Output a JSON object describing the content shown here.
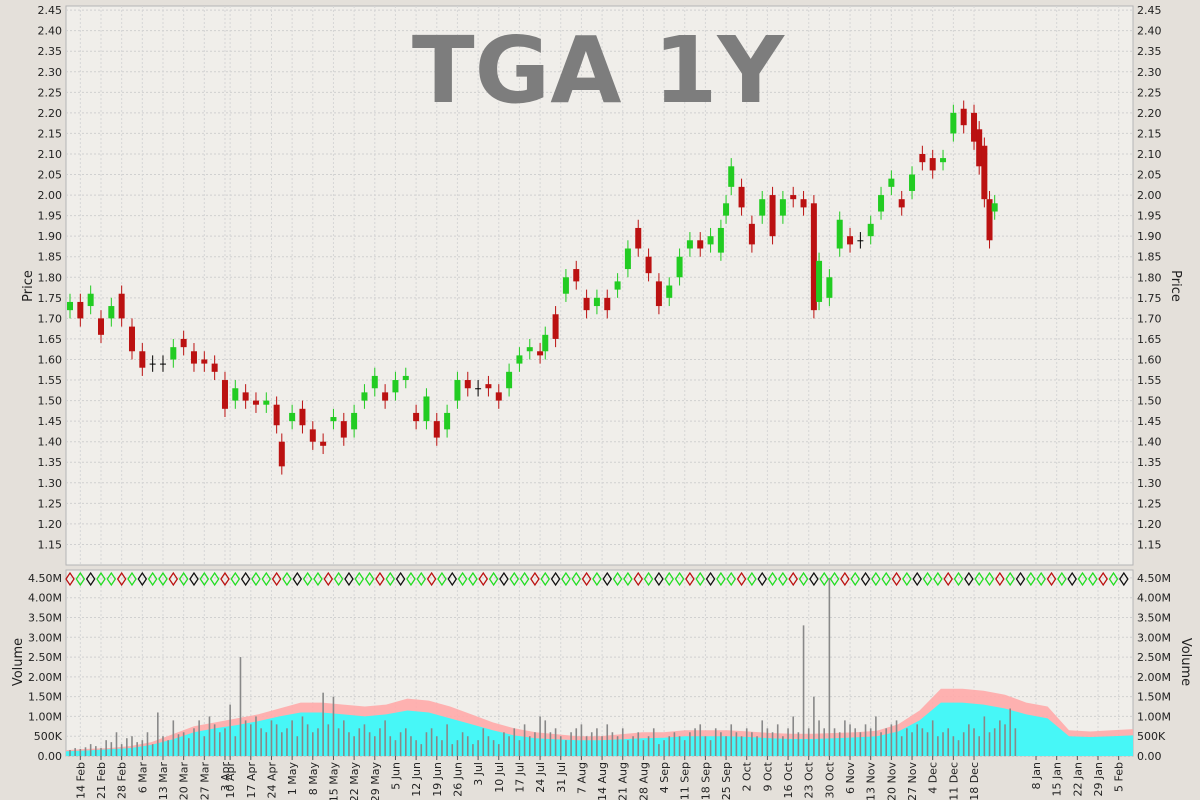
{
  "chart_data": {
    "type": "candlestick",
    "title": "TGA 1Y",
    "price_panel": {
      "ylabel": "Price",
      "ylim": [
        1.1,
        2.46
      ],
      "yticks": [
        "1.15",
        "1.20",
        "1.25",
        "1.30",
        "1.35",
        "1.40",
        "1.45",
        "1.50",
        "1.55",
        "1.60",
        "1.65",
        "1.70",
        "1.75",
        "1.80",
        "1.85",
        "1.90",
        "1.95",
        "2.00",
        "2.05",
        "2.10",
        "2.15",
        "2.20",
        "2.25",
        "2.30",
        "2.35",
        "2.40",
        "2.45"
      ],
      "grid": true,
      "series": [
        {
          "x": 0,
          "open": 1.72,
          "close": 1.74
        },
        {
          "x": 2,
          "open": 1.74,
          "close": 1.7
        },
        {
          "x": 4,
          "open": 1.73,
          "close": 1.76
        },
        {
          "x": 6,
          "open": 1.7,
          "close": 1.66
        },
        {
          "x": 8,
          "open": 1.7,
          "close": 1.73
        },
        {
          "x": 10,
          "open": 1.76,
          "close": 1.7
        },
        {
          "x": 12,
          "open": 1.68,
          "close": 1.62
        },
        {
          "x": 14,
          "open": 1.62,
          "close": 1.58
        },
        {
          "x": 16,
          "open": 1.59,
          "close": 1.59
        },
        {
          "x": 18,
          "open": 1.59,
          "close": 1.59
        },
        {
          "x": 20,
          "open": 1.6,
          "close": 1.63
        },
        {
          "x": 22,
          "open": 1.65,
          "close": 1.63
        },
        {
          "x": 24,
          "open": 1.62,
          "close": 1.59
        },
        {
          "x": 26,
          "open": 1.6,
          "close": 1.59
        },
        {
          "x": 28,
          "open": 1.59,
          "close": 1.57
        },
        {
          "x": 30,
          "open": 1.55,
          "close": 1.48
        },
        {
          "x": 32,
          "open": 1.5,
          "close": 1.53
        },
        {
          "x": 34,
          "open": 1.52,
          "close": 1.5
        },
        {
          "x": 36,
          "open": 1.5,
          "close": 1.49
        },
        {
          "x": 38,
          "open": 1.49,
          "close": 1.5
        },
        {
          "x": 40,
          "open": 1.49,
          "close": 1.44
        },
        {
          "x": 41,
          "open": 1.4,
          "close": 1.34
        },
        {
          "x": 43,
          "open": 1.45,
          "close": 1.47
        },
        {
          "x": 45,
          "open": 1.48,
          "close": 1.44
        },
        {
          "x": 47,
          "open": 1.43,
          "close": 1.4
        },
        {
          "x": 49,
          "open": 1.4,
          "close": 1.39
        },
        {
          "x": 51,
          "open": 1.45,
          "close": 1.46
        },
        {
          "x": 53,
          "open": 1.45,
          "close": 1.41
        },
        {
          "x": 55,
          "open": 1.43,
          "close": 1.47
        },
        {
          "x": 57,
          "open": 1.5,
          "close": 1.52
        },
        {
          "x": 59,
          "open": 1.53,
          "close": 1.56
        },
        {
          "x": 61,
          "open": 1.52,
          "close": 1.5
        },
        {
          "x": 63,
          "open": 1.52,
          "close": 1.55
        },
        {
          "x": 65,
          "open": 1.55,
          "close": 1.56
        },
        {
          "x": 67,
          "open": 1.47,
          "close": 1.45
        },
        {
          "x": 69,
          "open": 1.45,
          "close": 1.51
        },
        {
          "x": 71,
          "open": 1.45,
          "close": 1.41
        },
        {
          "x": 73,
          "open": 1.43,
          "close": 1.47
        },
        {
          "x": 75,
          "open": 1.5,
          "close": 1.55
        },
        {
          "x": 77,
          "open": 1.55,
          "close": 1.53
        },
        {
          "x": 79,
          "open": 1.53,
          "close": 1.53
        },
        {
          "x": 81,
          "open": 1.54,
          "close": 1.53
        },
        {
          "x": 83,
          "open": 1.52,
          "close": 1.5
        },
        {
          "x": 85,
          "open": 1.53,
          "close": 1.57
        },
        {
          "x": 87,
          "open": 1.59,
          "close": 1.61
        },
        {
          "x": 89,
          "open": 1.62,
          "close": 1.63
        },
        {
          "x": 91,
          "open": 1.62,
          "close": 1.61
        },
        {
          "x": 92,
          "open": 1.62,
          "close": 1.66
        },
        {
          "x": 94,
          "open": 1.71,
          "close": 1.65
        },
        {
          "x": 96,
          "open": 1.76,
          "close": 1.8
        },
        {
          "x": 98,
          "open": 1.82,
          "close": 1.79
        },
        {
          "x": 100,
          "open": 1.75,
          "close": 1.72
        },
        {
          "x": 102,
          "open": 1.73,
          "close": 1.75
        },
        {
          "x": 104,
          "open": 1.75,
          "close": 1.72
        },
        {
          "x": 106,
          "open": 1.77,
          "close": 1.79
        },
        {
          "x": 108,
          "open": 1.82,
          "close": 1.87
        },
        {
          "x": 110,
          "open": 1.92,
          "close": 1.87
        },
        {
          "x": 112,
          "open": 1.85,
          "close": 1.81
        },
        {
          "x": 114,
          "open": 1.79,
          "close": 1.73
        },
        {
          "x": 116,
          "open": 1.75,
          "close": 1.78
        },
        {
          "x": 118,
          "open": 1.8,
          "close": 1.85
        },
        {
          "x": 120,
          "open": 1.87,
          "close": 1.89
        },
        {
          "x": 122,
          "open": 1.89,
          "close": 1.87
        },
        {
          "x": 124,
          "open": 1.88,
          "close": 1.9
        },
        {
          "x": 126,
          "open": 1.86,
          "close": 1.92
        },
        {
          "x": 127,
          "open": 1.95,
          "close": 1.98
        },
        {
          "x": 128,
          "open": 2.02,
          "close": 2.07
        },
        {
          "x": 130,
          "open": 2.02,
          "close": 1.97
        },
        {
          "x": 132,
          "open": 1.93,
          "close": 1.88
        },
        {
          "x": 134,
          "open": 1.95,
          "close": 1.99
        },
        {
          "x": 136,
          "open": 2.0,
          "close": 1.9
        },
        {
          "x": 138,
          "open": 1.95,
          "close": 1.99
        },
        {
          "x": 140,
          "open": 2.0,
          "close": 1.99
        },
        {
          "x": 142,
          "open": 1.99,
          "close": 1.97
        },
        {
          "x": 144,
          "open": 1.98,
          "close": 1.72
        },
        {
          "x": 145,
          "open": 1.74,
          "close": 1.84
        },
        {
          "x": 147,
          "open": 1.75,
          "close": 1.8
        },
        {
          "x": 149,
          "open": 1.87,
          "close": 1.94
        },
        {
          "x": 151,
          "open": 1.9,
          "close": 1.88
        },
        {
          "x": 153,
          "open": 1.89,
          "close": 1.89
        },
        {
          "x": 155,
          "open": 1.9,
          "close": 1.93
        },
        {
          "x": 157,
          "open": 1.96,
          "close": 2.0
        },
        {
          "x": 159,
          "open": 2.02,
          "close": 2.04
        },
        {
          "x": 161,
          "open": 1.99,
          "close": 1.97
        },
        {
          "x": 163,
          "open": 2.01,
          "close": 2.05
        },
        {
          "x": 165,
          "open": 2.1,
          "close": 2.08
        },
        {
          "x": 167,
          "open": 2.09,
          "close": 2.06
        },
        {
          "x": 169,
          "open": 2.08,
          "close": 2.09
        },
        {
          "x": 171,
          "open": 2.15,
          "close": 2.2
        },
        {
          "x": 173,
          "open": 2.21,
          "close": 2.17
        },
        {
          "x": 175,
          "open": 2.2,
          "close": 2.13
        },
        {
          "x": 176,
          "open": 2.16,
          "close": 2.07
        },
        {
          "x": 177,
          "open": 2.12,
          "close": 1.99
        },
        {
          "x": 178,
          "open": 1.99,
          "close": 1.89
        },
        {
          "x": 179,
          "open": 1.96,
          "close": 1.98
        }
      ]
    },
    "volume_panel": {
      "ylabel": "Volume",
      "ylim": [
        0,
        4700000
      ],
      "yticks": [
        "0.00",
        "500K",
        "1.00M",
        "1.50M",
        "2.00M",
        "2.50M",
        "3.00M",
        "3.50M",
        "4.00M",
        "4.50M"
      ],
      "grid": true,
      "volume": [
        150000,
        200000,
        180000,
        220000,
        300000,
        250000,
        200000,
        400000,
        350000,
        600000,
        300000,
        450000,
        500000,
        350000,
        400000,
        600000,
        300000,
        1100000,
        500000,
        400000,
        900000,
        550000,
        600000,
        450000,
        700000,
        900000,
        500000,
        1000000,
        800000,
        600000,
        700000,
        1300000,
        500000,
        2500000,
        900000,
        800000,
        1000000,
        700000,
        600000,
        900000,
        800000,
        600000,
        700000,
        900000,
        500000,
        1000000,
        800000,
        600000,
        700000,
        1600000,
        800000,
        1500000,
        700000,
        900000,
        600000,
        500000,
        700000,
        800000,
        600000,
        500000,
        700000,
        900000,
        500000,
        400000,
        600000,
        700000,
        500000,
        400000,
        300000,
        600000,
        700000,
        500000,
        400000,
        800000,
        300000,
        400000,
        600000,
        500000,
        300000,
        400000,
        700000,
        500000,
        400000,
        300000,
        600000,
        500000,
        700000,
        400000,
        800000,
        500000,
        600000,
        1000000,
        900000,
        600000,
        700000,
        500000,
        400000,
        600000,
        700000,
        800000,
        500000,
        600000,
        700000,
        500000,
        800000,
        600000,
        500000,
        700000,
        400000,
        500000,
        600000,
        400000,
        500000,
        700000,
        300000,
        400000,
        500000,
        600000,
        500000,
        400000,
        600000,
        700000,
        800000,
        500000,
        400000,
        700000,
        600000,
        500000,
        800000,
        600000,
        500000,
        700000,
        600000,
        500000,
        900000,
        700000,
        600000,
        800000,
        500000,
        700000,
        1000000,
        600000,
        3300000,
        700000,
        1500000,
        900000,
        700000,
        4500000,
        700000,
        600000,
        900000,
        800000,
        700000,
        600000,
        800000,
        700000,
        1000000,
        600000,
        700000,
        800000,
        900000,
        500000,
        700000,
        600000,
        800000,
        700000,
        600000,
        900000,
        500000,
        600000,
        700000,
        500000,
        400000,
        600000,
        800000,
        700000,
        500000,
        1000000,
        600000,
        700000,
        900000,
        800000,
        1200000,
        700000
      ],
      "avg_bands": [
        {
          "name": "band-pink",
          "color": "#ffaaaa",
          "values": [
            150000,
            180000,
            200000,
            250000,
            350000,
            550000,
            750000,
            850000,
            950000,
            1050000,
            1200000,
            1350000,
            1350000,
            1300000,
            1250000,
            1300000,
            1450000,
            1400000,
            1250000,
            1050000,
            850000,
            700000,
            600000,
            550000,
            500000,
            500000,
            550000,
            600000,
            600000,
            650000,
            650000,
            650000,
            620000,
            580000,
            560000,
            560000,
            580000,
            600000,
            640000,
            800000,
            1150000,
            1700000,
            1700000,
            1650000,
            1550000,
            1350000,
            1250000,
            650000,
            620000,
            650000,
            680000
          ]
        },
        {
          "name": "band-cyan",
          "color": "#33ffff",
          "values": [
            120000,
            140000,
            170000,
            200000,
            280000,
            420000,
            600000,
            700000,
            780000,
            880000,
            1000000,
            1100000,
            1100000,
            1050000,
            1000000,
            1050000,
            1150000,
            1100000,
            950000,
            800000,
            650000,
            520000,
            450000,
            420000,
            400000,
            400000,
            420000,
            450000,
            460000,
            500000,
            500000,
            500000,
            480000,
            450000,
            430000,
            430000,
            450000,
            470000,
            500000,
            620000,
            900000,
            1350000,
            1350000,
            1300000,
            1200000,
            1050000,
            950000,
            500000,
            480000,
            500000,
            520000
          ]
        }
      ]
    },
    "xticks": [
      "14 Feb",
      "21 Feb",
      "28 Feb",
      "6 Mar",
      "13 Mar",
      "20 Mar",
      "27 Mar",
      "3 Apr",
      "10 Apr",
      "17 Apr",
      "24 Apr",
      "1 May",
      "8 May",
      "15 May",
      "22 May",
      "29 May",
      "5 Jun",
      "12 Jun",
      "19 Jun",
      "26 Jun",
      "3 Jul",
      "10 Jul",
      "17 Jul",
      "24 Jul",
      "31 Jul",
      "7 Aug",
      "14 Aug",
      "21 Aug",
      "28 Aug",
      "4 Sep",
      "11 Sep",
      "18 Sep",
      "25 Sep",
      "2 Oct",
      "9 Oct",
      "16 Oct",
      "23 Oct",
      "30 Oct",
      "6 Nov",
      "13 Nov",
      "20 Nov",
      "27 Nov",
      "4 Dec",
      "11 Dec",
      "18 Dec",
      "8 Jan",
      "15 Jan",
      "22 Jan",
      "29 Jan",
      "5 Feb"
    ],
    "xtick_index": [
      2,
      6,
      10,
      14,
      18,
      22,
      26,
      30,
      31,
      35,
      39,
      43,
      47,
      51,
      55,
      59,
      63,
      67,
      71,
      75,
      79,
      83,
      87,
      91,
      95,
      99,
      103,
      107,
      111,
      115,
      119,
      123,
      127,
      131,
      135,
      139,
      143,
      147,
      151,
      155,
      159,
      163,
      167,
      171,
      175,
      187,
      191,
      195,
      199,
      203
    ],
    "colors": {
      "up": "#22cc22",
      "down": "#bb1111",
      "flat": "#000000",
      "price_bg": "#f0eeea",
      "volume_bar": "#888888"
    }
  }
}
